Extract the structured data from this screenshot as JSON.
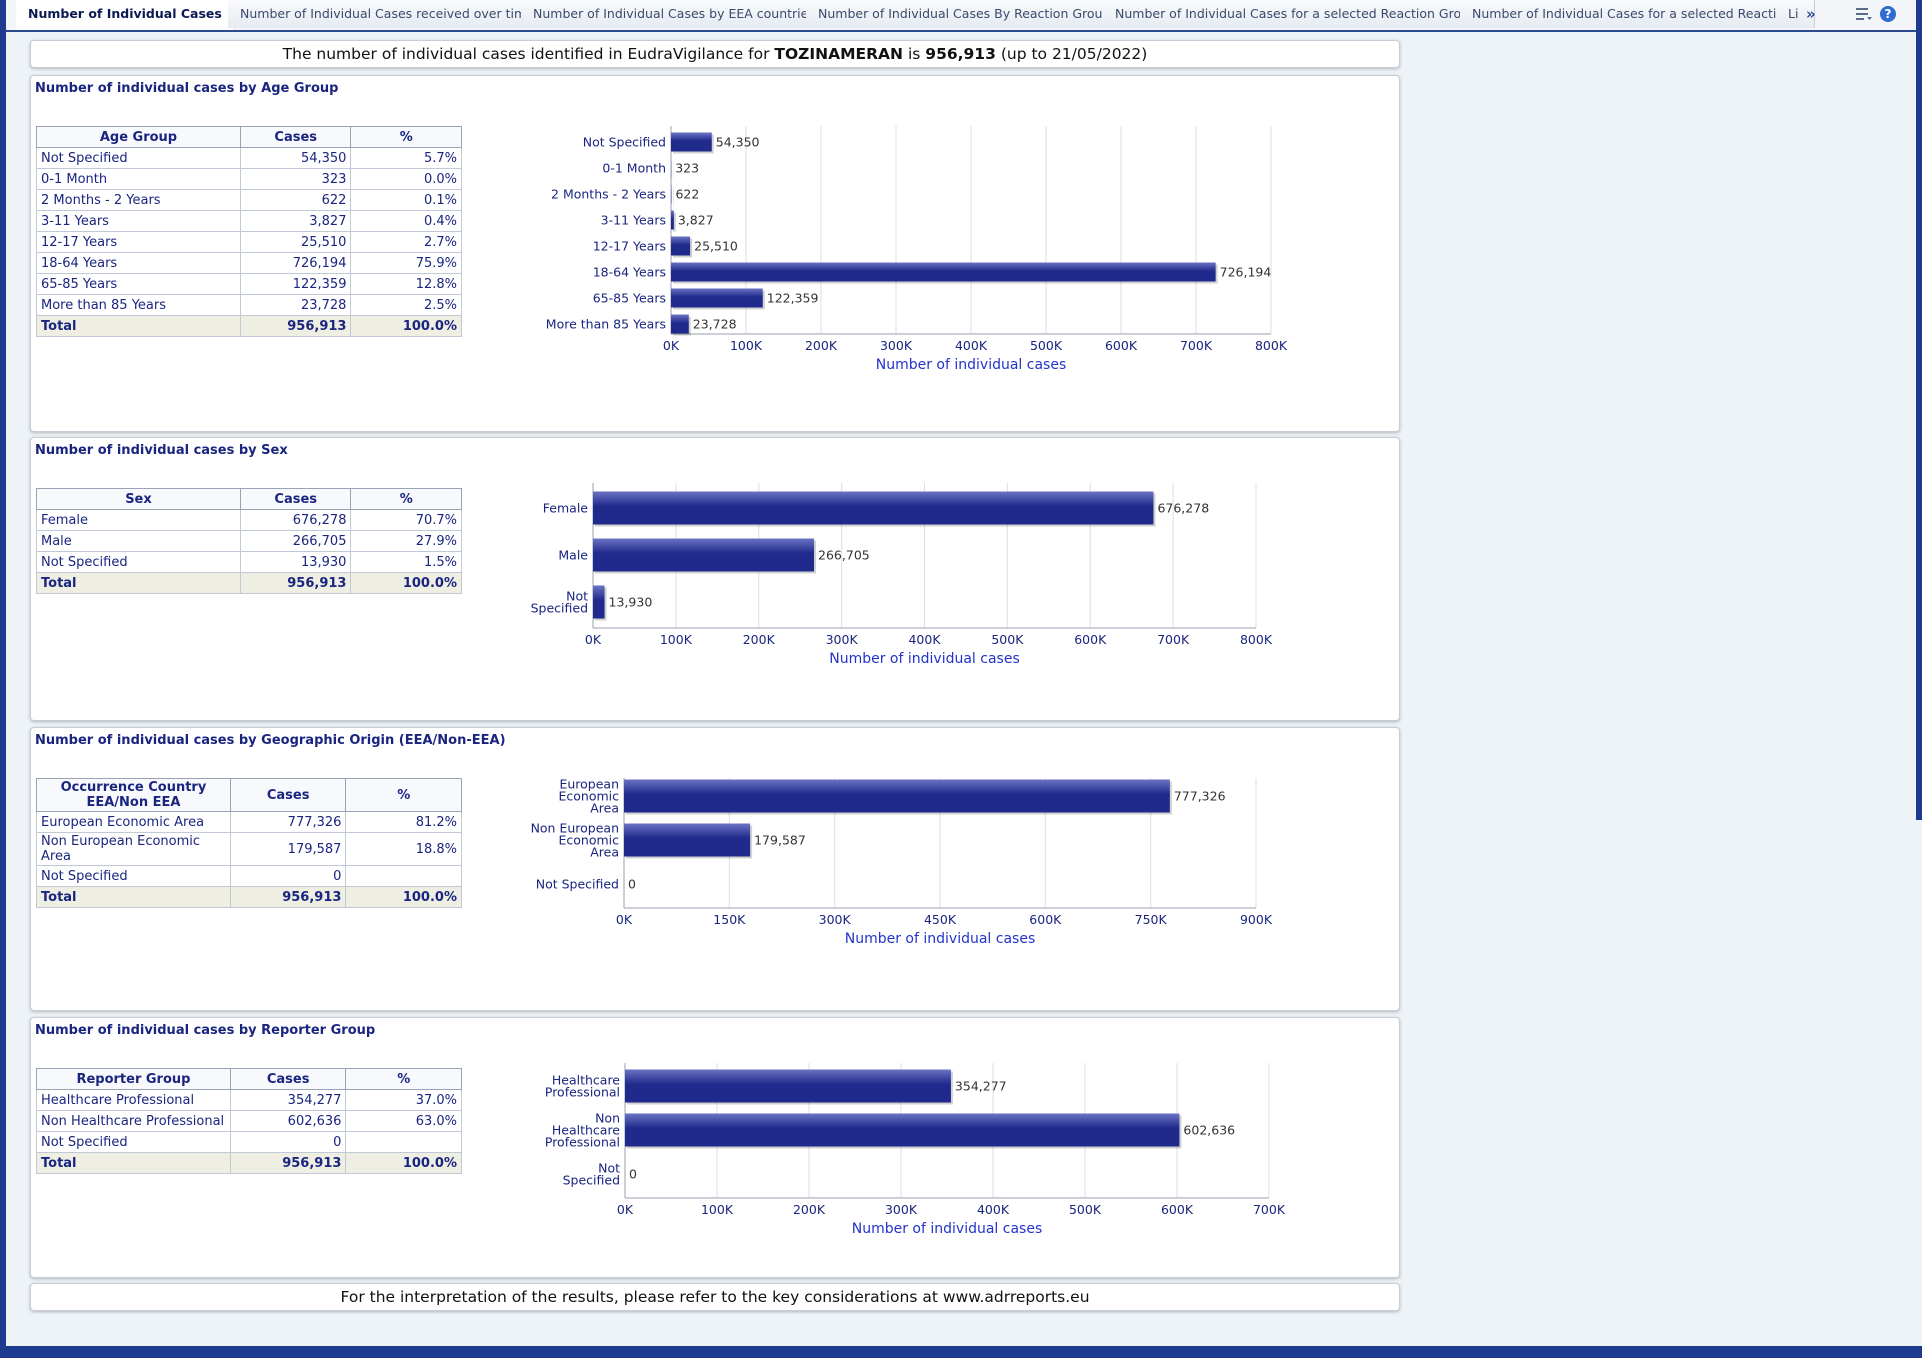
{
  "tabs": [
    {
      "label": "Number of Individual Cases",
      "active": true
    },
    {
      "label": "Number of Individual Cases received over time"
    },
    {
      "label": "Number of Individual Cases by EEA countries"
    },
    {
      "label": "Number of Individual Cases By Reaction Groups"
    },
    {
      "label": "Number of Individual Cases for a selected Reaction Group"
    },
    {
      "label": "Number of Individual Cases for a selected Reaction"
    },
    {
      "label": "Li"
    }
  ],
  "toolbar": {
    "more": "»",
    "settings_icon": "settings-list-icon",
    "help_label": "?"
  },
  "banner": {
    "prefix": "The number of individual cases identified in EudraVigilance for ",
    "product": "TOZINAMERAN",
    "mid": " is ",
    "total": "956,913",
    "suffix": " (up to 21/05/2022)"
  },
  "footer": {
    "text": "For the interpretation of the results, please refer to the key considerations at www.adrreports.eu"
  },
  "colors": {
    "bar": "#1f2a8c",
    "bar_light": "#6a73c2",
    "text": "#1a2580",
    "axis_title": "#2233cc",
    "grid": "#dcdfe6"
  },
  "age": {
    "title": "Number of individual cases by Age Group",
    "headers": [
      "Age Group",
      "Cases",
      "%"
    ],
    "rows": [
      [
        "Not Specified",
        "54,350",
        "5.7%"
      ],
      [
        "0-1 Month",
        "323",
        "0.0%"
      ],
      [
        "2 Months - 2 Years",
        "622",
        "0.1%"
      ],
      [
        "3-11 Years",
        "3,827",
        "0.4%"
      ],
      [
        "12-17 Years",
        "25,510",
        "2.7%"
      ],
      [
        "18-64 Years",
        "726,194",
        "75.9%"
      ],
      [
        "65-85 Years",
        "122,359",
        "12.8%"
      ],
      [
        "More than 85 Years",
        "23,728",
        "2.5%"
      ]
    ],
    "total": [
      "Total",
      "956,913",
      "100.0%"
    ]
  },
  "sex": {
    "title": "Number of individual cases by Sex",
    "headers": [
      "Sex",
      "Cases",
      "%"
    ],
    "rows": [
      [
        "Female",
        "676,278",
        "70.7%"
      ],
      [
        "Male",
        "266,705",
        "27.9%"
      ],
      [
        "Not Specified",
        "13,930",
        "1.5%"
      ]
    ],
    "total": [
      "Total",
      "956,913",
      "100.0%"
    ]
  },
  "geo": {
    "title": "Number of individual cases by Geographic Origin (EEA/Non-EEA)",
    "headers": [
      "Occurrence Country EEA/Non EEA",
      "Cases",
      "%"
    ],
    "rows": [
      [
        "European Economic Area",
        "777,326",
        "81.2%"
      ],
      [
        "Non European Economic Area",
        "179,587",
        "18.8%"
      ],
      [
        "Not Specified",
        "0",
        ""
      ]
    ],
    "total": [
      "Total",
      "956,913",
      "100.0%"
    ]
  },
  "reporter": {
    "title": "Number of individual cases by Reporter Group",
    "headers": [
      "Reporter Group",
      "Cases",
      "%"
    ],
    "rows": [
      [
        "Healthcare Professional",
        "354,277",
        "37.0%"
      ],
      [
        "Non Healthcare Professional",
        "602,636",
        "63.0%"
      ],
      [
        "Not Specified",
        "0",
        ""
      ]
    ],
    "total": [
      "Total",
      "956,913",
      "100.0%"
    ]
  },
  "chart_data": [
    {
      "type": "bar",
      "orientation": "horizontal",
      "categories": [
        "Not Specified",
        "0-1 Month",
        "2 Months - 2 Years",
        "3-11 Years",
        "12-17 Years",
        "18-64 Years",
        "65-85 Years",
        "More than 85 Years"
      ],
      "values": [
        54350,
        323,
        622,
        3827,
        25510,
        726194,
        122359,
        23728
      ],
      "value_labels": [
        "54,350",
        "323",
        "622",
        "3,827",
        "25,510",
        "726,194",
        "122,359",
        "23,728"
      ],
      "xlabel": "Number of individual cases",
      "xlim": [
        0,
        800000
      ],
      "ticks": [
        "0K",
        "100K",
        "200K",
        "300K",
        "400K",
        "500K",
        "600K",
        "700K",
        "800K"
      ],
      "grid": true
    },
    {
      "type": "bar",
      "orientation": "horizontal",
      "categories": [
        "Female",
        "Male",
        "Not Specified"
      ],
      "values": [
        676278,
        266705,
        13930
      ],
      "value_labels": [
        "676,278",
        "266,705",
        "13,930"
      ],
      "xlabel": "Number of individual cases",
      "xlim": [
        0,
        800000
      ],
      "ticks": [
        "0K",
        "100K",
        "200K",
        "300K",
        "400K",
        "500K",
        "600K",
        "700K",
        "800K"
      ],
      "grid": true
    },
    {
      "type": "bar",
      "orientation": "horizontal",
      "categories": [
        "European Economic Area",
        "Non European Economic Area",
        "Not Specified"
      ],
      "values": [
        777326,
        179587,
        0
      ],
      "value_labels": [
        "777,326",
        "179,587",
        "0"
      ],
      "xlabel": "Number of individual cases",
      "xlim": [
        0,
        900000
      ],
      "ticks": [
        "0K",
        "150K",
        "300K",
        "450K",
        "600K",
        "750K",
        "900K"
      ],
      "grid": true
    },
    {
      "type": "bar",
      "orientation": "horizontal",
      "categories": [
        "Healthcare Professional",
        "Non Healthcare Professional",
        "Not Specified"
      ],
      "values": [
        354277,
        602636,
        0
      ],
      "value_labels": [
        "354,277",
        "602,636",
        "0"
      ],
      "xlabel": "Number of individual cases",
      "xlim": [
        0,
        700000
      ],
      "ticks": [
        "0K",
        "100K",
        "200K",
        "300K",
        "400K",
        "500K",
        "600K",
        "700K"
      ],
      "grid": true
    }
  ]
}
